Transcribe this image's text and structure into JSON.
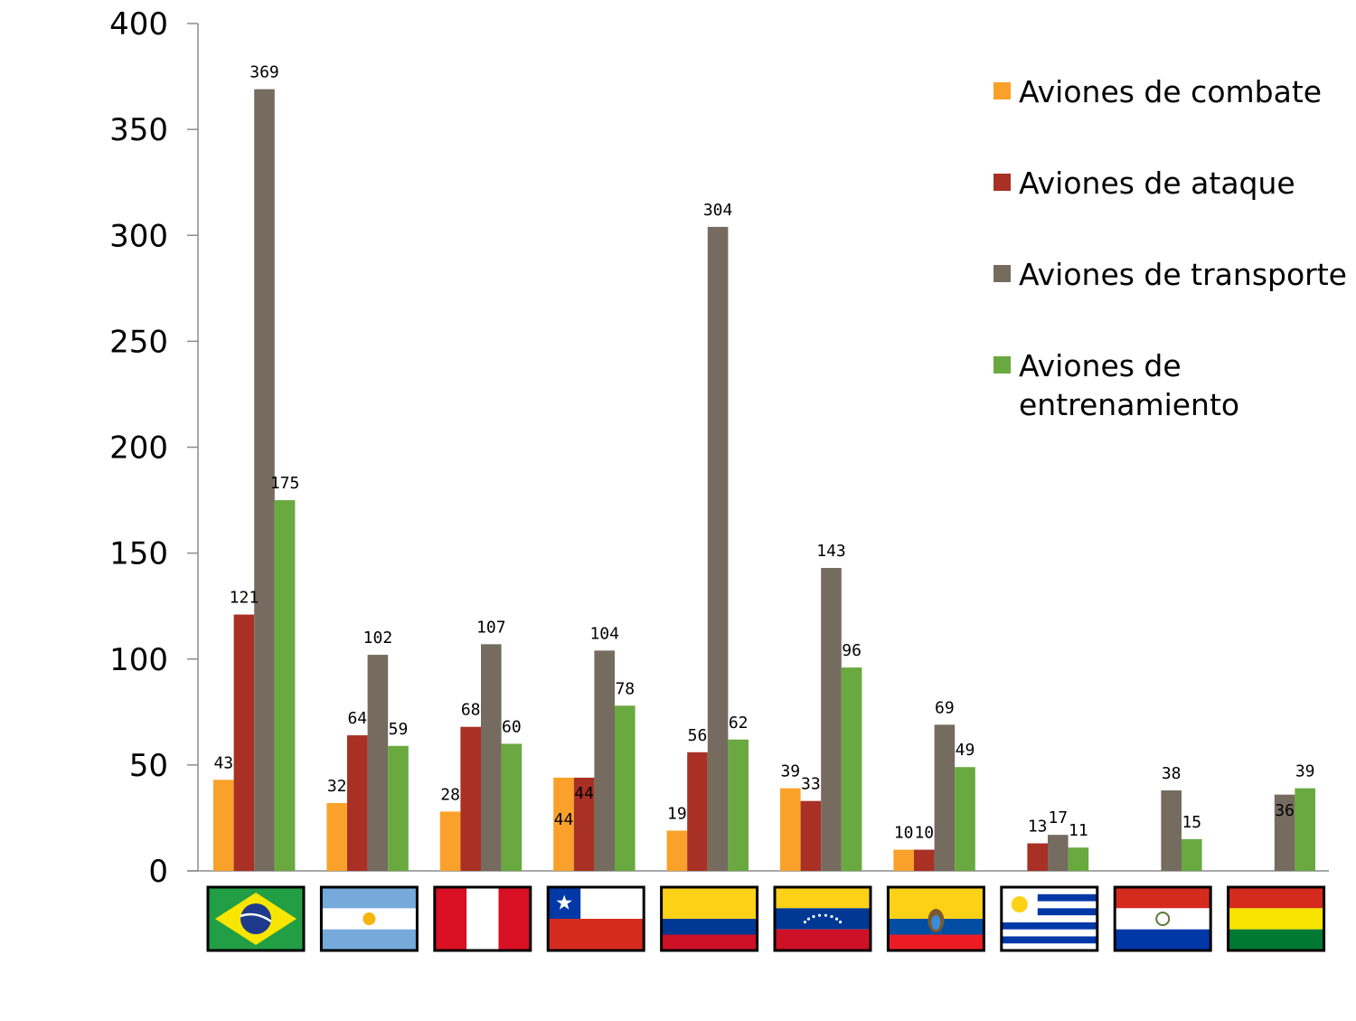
{
  "chart_data": {
    "type": "bar",
    "ylim": [
      0,
      400
    ],
    "yticks": [
      0,
      50,
      100,
      150,
      200,
      250,
      300,
      350,
      400
    ],
    "grid": false,
    "legend_position": "top-right",
    "categories": [
      "brazil-flag",
      "argentina-flag",
      "peru-flag",
      "chile-flag",
      "colombia-flag",
      "venezuela-flag",
      "ecuador-flag",
      "uruguay-flag",
      "paraguay-flag",
      "bolivia-flag"
    ],
    "series": [
      {
        "name": "Aviones de combate",
        "color": "#F9A12A",
        "values": [
          43,
          32,
          28,
          44,
          19,
          39,
          10,
          null,
          null,
          null
        ]
      },
      {
        "name": "Aviones de ataque",
        "color": "#A83024",
        "values": [
          121,
          64,
          68,
          44,
          56,
          33,
          10,
          13,
          null,
          null
        ]
      },
      {
        "name": "Aviones de transporte",
        "color": "#756B5F",
        "values": [
          369,
          102,
          107,
          104,
          304,
          143,
          69,
          17,
          38,
          36
        ]
      },
      {
        "name": "Aviones de\nentrenamiento",
        "color": "#69A93F",
        "values": [
          175,
          59,
          60,
          78,
          62,
          96,
          49,
          11,
          15,
          39
        ]
      }
    ]
  }
}
